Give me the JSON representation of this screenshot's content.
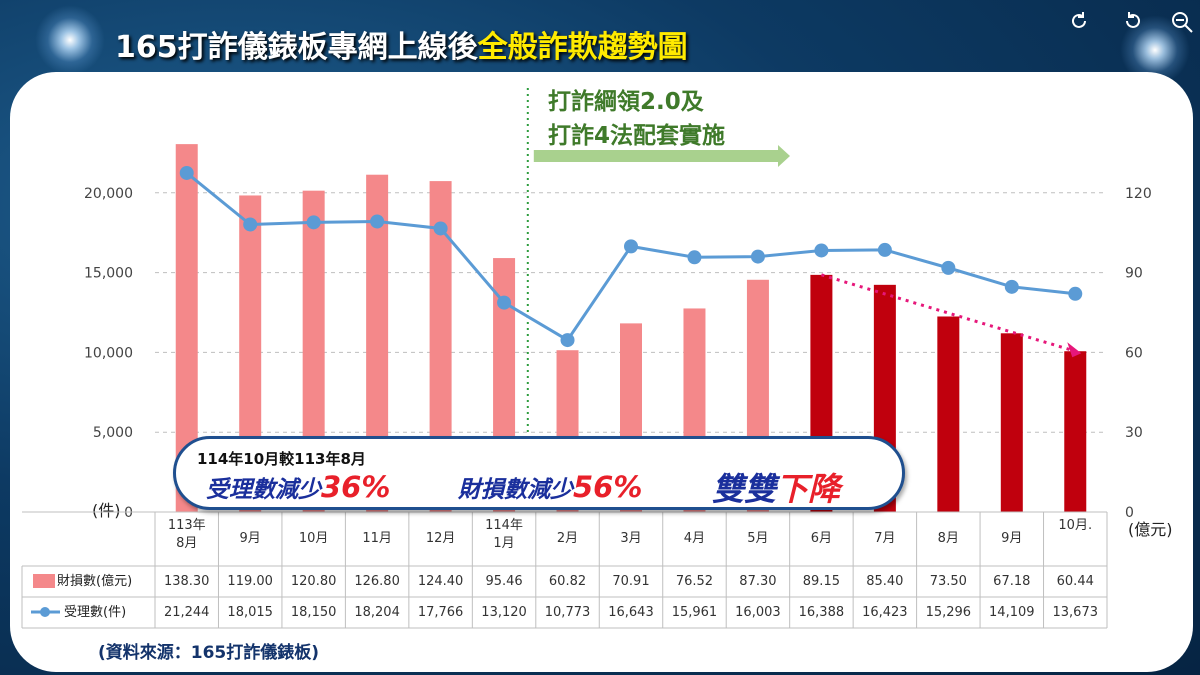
{
  "title": {
    "main": "165打詐儀錶板專網上線後",
    "highlight": "全般詐欺趨勢圖"
  },
  "toolbar": {
    "reload_icon": "reload-icon",
    "undo_icon": "undo-icon",
    "zoom_icon": "zoom-out-icon"
  },
  "annotation": {
    "line1": "打詐綱領2.0及",
    "line2": "打詐4法配套實施"
  },
  "callout": {
    "top": "114年10月較113年8月",
    "a_text": "受理數減少",
    "a_pct": "36%",
    "b_text": "財損數減少",
    "b_pct": "56%",
    "c_text": "雙雙",
    "c_red": "下降"
  },
  "footnote": "(資料來源：165打詐儀錶板)",
  "colors": {
    "bar_light": "#f4888a",
    "bar_dark": "#c0000d",
    "line": "#5b9bd5",
    "trend": "#e6177a",
    "divider": "#2e9c3e"
  },
  "chart_data": {
    "type": "bar",
    "categories": [
      "113年8月",
      "9月",
      "10月",
      "11月",
      "12月",
      "114年1月",
      "2月",
      "3月",
      "4月",
      "5月",
      "6月",
      "7月",
      "8月",
      "9月",
      "10月."
    ],
    "series": [
      {
        "name": "財損數(億元)",
        "type": "bar",
        "axis": "right",
        "values": [
          138.3,
          119.0,
          120.8,
          126.8,
          124.4,
          95.46,
          60.82,
          70.91,
          76.52,
          87.3,
          89.15,
          85.4,
          73.5,
          67.18,
          60.44
        ]
      },
      {
        "name": "受理數(件)",
        "type": "line",
        "axis": "left",
        "values": [
          21244,
          18015,
          18150,
          18204,
          17766,
          13120,
          10773,
          16643,
          15961,
          16003,
          16388,
          16423,
          15296,
          14109,
          13673
        ]
      }
    ],
    "series_display": {
      "bar": [
        "138.30",
        "119.00",
        "120.80",
        "126.80",
        "124.40",
        "95.46",
        "60.82",
        "70.91",
        "76.52",
        "87.30",
        "89.15",
        "85.40",
        "73.50",
        "67.18",
        "60.44"
      ],
      "line": [
        "21,244",
        "18,015",
        "18,150",
        "18,204",
        "17,766",
        "13,120",
        "10,773",
        "16,643",
        "15,961",
        "16,003",
        "16,388",
        "16,423",
        "15,296",
        "14,109",
        "13,673"
      ]
    },
    "dark_bar_from_index": 10,
    "y_left": {
      "unit": "(件)",
      "range": [
        0,
        25000
      ],
      "ticks": [
        0,
        5000,
        10000,
        15000,
        20000
      ],
      "tick_labels": [
        "0",
        "5,000",
        "10,000",
        "15,000",
        "20,000"
      ]
    },
    "y_right": {
      "unit": "(億元)",
      "range": [
        0,
        150
      ],
      "ticks": [
        0,
        30,
        60,
        90,
        120
      ],
      "tick_labels": [
        "0",
        "30",
        "60",
        "90",
        "120"
      ]
    },
    "trend_line": {
      "from": "6月",
      "to": "10月."
    },
    "divider_after": "114年1月",
    "grid": true
  }
}
